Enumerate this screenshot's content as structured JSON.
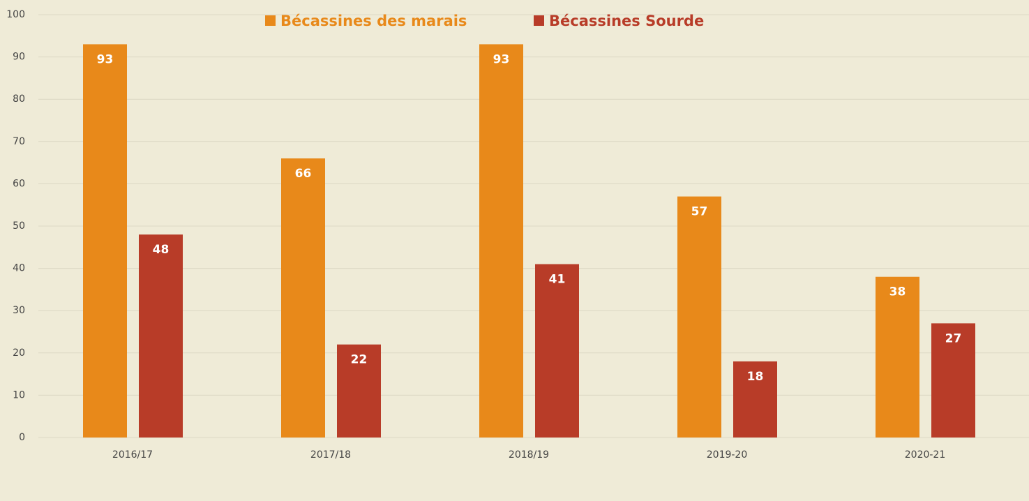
{
  "chart_data": {
    "type": "bar",
    "categories": [
      "2016/17",
      "2017/18",
      "2018/19",
      "2019-20",
      "2020-21"
    ],
    "series": [
      {
        "name": "Bécassines des marais",
        "color": "#e8891a",
        "values": [
          93,
          66,
          93,
          57,
          38
        ]
      },
      {
        "name": "Bécassines Sourde",
        "color": "#b83c28",
        "values": [
          48,
          22,
          41,
          18,
          27
        ]
      }
    ],
    "ylim": [
      0,
      100
    ],
    "yticks": [
      0,
      10,
      20,
      30,
      40,
      50,
      60,
      70,
      80,
      90,
      100
    ],
    "grid": true,
    "legend": "top"
  }
}
